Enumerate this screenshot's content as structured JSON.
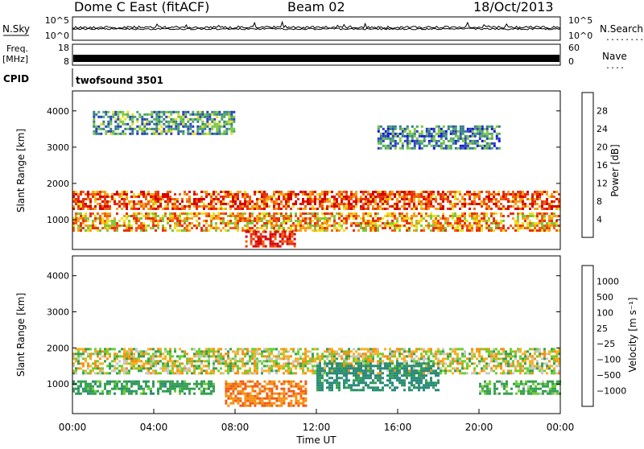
{
  "header": {
    "station": "Dome C East (fitACF)",
    "beam": "Beam 02",
    "date": "18/Oct/2013"
  },
  "top_panels": {
    "nsky_label": "N.Sky",
    "nsearch_label": "N.Search",
    "nsearch_dots": "........",
    "noise_ticks_left": [
      "10^5",
      "10^0"
    ],
    "noise_ticks_right": [
      "10^5",
      "10^0"
    ],
    "freq_label_line1": "Freq.",
    "freq_label_line2": "[MHz]",
    "freq_ticks": [
      "18",
      "8"
    ],
    "nave_label": "Nave",
    "nave_dots": "....",
    "nave_ticks": [
      "60",
      "0"
    ],
    "cpid_label": "CPID",
    "cpid_value": "twofsound 3501"
  },
  "colors": {
    "power_scale": [
      "#1010e0",
      "#2a3ec0",
      "#357d8a",
      "#4fa56a",
      "#7cc840",
      "#e8e020",
      "#f5a21a",
      "#f06010",
      "#e83010",
      "#d60000"
    ],
    "velocity_scale": [
      "#e81010",
      "#f05a10",
      "#f59010",
      "#f5b020",
      "#c8c8c0",
      "#6ccf30",
      "#35a050",
      "#2a8a7a",
      "#2a60b0",
      "#1a3ac8"
    ]
  },
  "chart_data": [
    {
      "type": "heatmap",
      "panel": "power",
      "xlabel": "",
      "ylabel": "Slant Range [km]",
      "ylim": [
        180,
        4550
      ],
      "xlim": [
        0,
        24
      ],
      "yticks": [
        1000,
        2000,
        3000,
        4000
      ],
      "colorbar_label": "Power [dB]",
      "colorbar_ticks": [
        "4",
        "8",
        "12",
        "16",
        "20",
        "24",
        "28"
      ],
      "colorbar_range": [
        0,
        30
      ],
      "bands": [
        {
          "range_km": [
            1300,
            1800
          ],
          "t_start": 0,
          "t_end": 24,
          "level_db": 24
        },
        {
          "range_km": [
            700,
            1200
          ],
          "t_start": 0,
          "t_end": 24,
          "level_db": 20
        },
        {
          "range_km": [
            300,
            700
          ],
          "t_start": 8.5,
          "t_end": 11,
          "level_db": 28
        },
        {
          "range_km": [
            3400,
            4000
          ],
          "t_start": 1,
          "t_end": 8,
          "level_db": 10
        },
        {
          "range_km": [
            3000,
            3600
          ],
          "t_start": 15,
          "t_end": 21,
          "level_db": 8
        }
      ]
    },
    {
      "type": "heatmap",
      "panel": "velocity",
      "xlabel": "Time UT",
      "ylabel": "Slant Range [km]",
      "ylim": [
        180,
        4550
      ],
      "xlim": [
        0,
        24
      ],
      "yticks": [
        1000,
        2000,
        3000,
        4000
      ],
      "xticks": [
        "00:00",
        "04:00",
        "08:00",
        "12:00",
        "16:00",
        "20:00",
        "00:00"
      ],
      "colorbar_label": "Velocity [m s⁻¹]",
      "colorbar_ticks": [
        "1000",
        "500",
        "100",
        "25",
        "−25",
        "−100",
        "−500",
        "−1000"
      ],
      "bands": [
        {
          "range_km": [
            1300,
            2000
          ],
          "t_start": 0,
          "t_end": 24,
          "velocity": 0
        },
        {
          "range_km": [
            700,
            1100
          ],
          "t_start": 0,
          "t_end": 7,
          "velocity": 200
        },
        {
          "range_km": [
            400,
            1100
          ],
          "t_start": 7.5,
          "t_end": 11.5,
          "velocity": -300
        },
        {
          "range_km": [
            800,
            1600
          ],
          "t_start": 12,
          "t_end": 18,
          "velocity": 400
        },
        {
          "range_km": [
            700,
            1100
          ],
          "t_start": 20,
          "t_end": 24,
          "velocity": 150
        }
      ]
    }
  ]
}
